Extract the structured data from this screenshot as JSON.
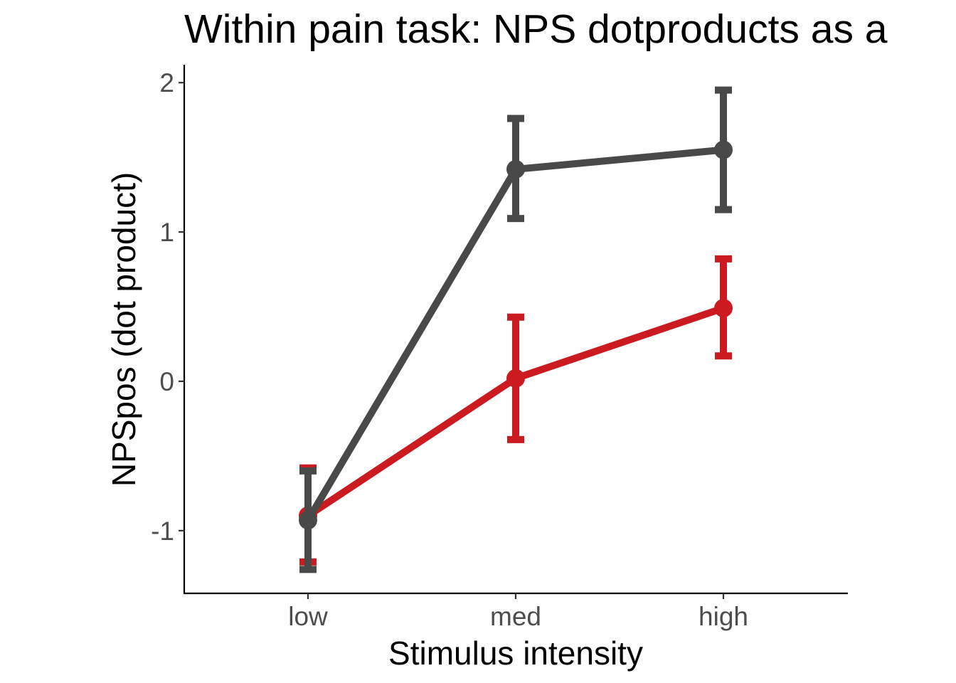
{
  "chart_data": {
    "type": "line",
    "title": "Within pain task: NPS dotproducts as a",
    "xlabel": "Stimulus intensity",
    "ylabel": "NPSpos (dot product)",
    "categories": [
      "low",
      "med",
      "high"
    ],
    "y_ticks": [
      -1,
      0,
      1,
      2
    ],
    "y_tick_labels": [
      "-1",
      "0",
      "1",
      "2"
    ],
    "ylim": [
      -1.42,
      2.12
    ],
    "grid": false,
    "legend": "none",
    "series": [
      {
        "color": "#cb1b21",
        "values": [
          -0.9,
          0.02,
          0.49
        ],
        "lower": [
          -1.21,
          -0.39,
          0.17
        ],
        "upper": [
          -0.58,
          0.43,
          0.82
        ]
      },
      {
        "color": "#494949",
        "values": [
          -0.93,
          1.42,
          1.55
        ],
        "lower": [
          -1.26,
          1.09,
          1.15
        ],
        "upper": [
          -0.6,
          1.76,
          1.95
        ]
      }
    ]
  }
}
